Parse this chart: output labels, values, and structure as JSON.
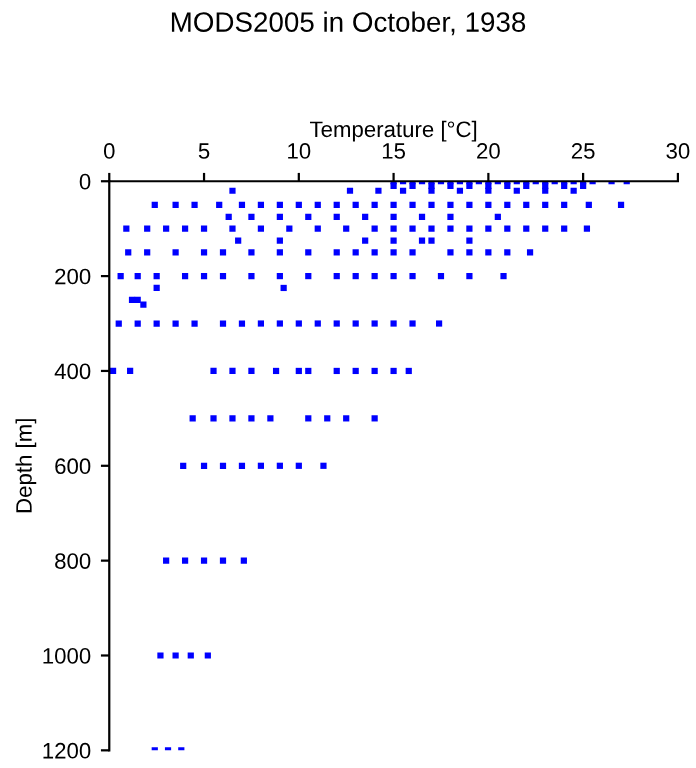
{
  "chart_data": {
    "type": "scatter",
    "title": "MODS2005 in October, 1938",
    "xlabel": "Temperature [°C]",
    "ylabel": "Depth [m]",
    "xlim": [
      0,
      30
    ],
    "xticks": [
      0,
      5,
      10,
      15,
      20,
      25,
      30
    ],
    "ylim": [
      1200,
      0
    ],
    "yticks": [
      0,
      200,
      400,
      600,
      800,
      1000,
      1200
    ],
    "grid": false,
    "marker": "square",
    "series": [
      {
        "color": "#0000ff",
        "x": [
          15,
          15.5,
          16,
          16.5,
          17,
          17.5,
          18,
          18.5,
          19,
          19.5,
          20,
          20.5,
          21,
          21.5,
          22,
          22.5,
          23,
          23.5,
          24,
          24.5,
          25,
          25.5,
          26.5,
          27.3,
          15,
          16,
          17,
          18,
          19,
          20,
          21,
          22,
          23,
          24,
          25,
          6.5,
          12.7,
          14.2,
          15.5,
          17,
          18.5,
          20,
          21.5,
          23,
          24.5,
          2.4,
          3.5,
          4.5,
          5.8,
          7,
          8,
          9,
          10,
          11,
          12,
          13,
          14,
          15,
          16,
          17,
          18,
          19,
          20,
          21,
          22,
          23,
          24,
          25.3,
          27,
          6.3,
          7.5,
          9,
          10.5,
          12,
          13.5,
          15,
          16.5,
          18,
          20.5,
          0.9,
          2,
          3,
          4,
          5,
          6.5,
          8,
          9.5,
          11,
          12.5,
          14,
          15,
          16,
          17,
          18,
          19,
          20,
          21,
          22,
          23,
          24,
          25.2,
          6.8,
          9,
          13.5,
          15,
          16.5,
          17,
          19,
          1,
          2,
          3.5,
          5,
          6,
          7.5,
          9,
          10.5,
          12,
          13,
          14,
          15,
          16,
          18,
          19,
          20,
          21,
          22.2,
          0.6,
          1.5,
          2.5,
          4,
          5,
          6,
          7.5,
          9,
          10.5,
          12,
          13,
          14,
          15,
          16,
          17.5,
          19,
          20.8,
          2.5,
          9.2,
          1.2,
          1.5,
          1.8,
          0.5,
          1.5,
          2.5,
          3.5,
          4.5,
          6,
          7,
          8,
          9,
          10,
          11,
          12,
          13,
          14,
          15,
          16,
          17.4,
          0.2,
          1.1,
          5.5,
          6.5,
          7.5,
          8.8,
          10,
          10.5,
          12,
          13,
          14,
          15,
          15.8,
          4.4,
          5.5,
          6.5,
          7.5,
          8.5,
          10.5,
          11.5,
          12.5,
          14,
          3.9,
          5,
          6,
          7,
          8,
          9,
          10,
          11.3,
          3,
          4,
          5,
          6,
          7.1,
          2.7,
          3.5,
          4.3,
          5.2,
          2.4,
          3.1,
          3.8
        ],
        "values": [
          0,
          0,
          0,
          0,
          0,
          0,
          0,
          0,
          0,
          0,
          0,
          0,
          0,
          0,
          0,
          0,
          0,
          0,
          0,
          0,
          0,
          0,
          0,
          0,
          10,
          10,
          10,
          10,
          10,
          10,
          10,
          10,
          10,
          10,
          10,
          20,
          20,
          20,
          20,
          20,
          20,
          20,
          20,
          20,
          20,
          50,
          50,
          50,
          50,
          50,
          50,
          50,
          50,
          50,
          50,
          50,
          50,
          50,
          50,
          50,
          50,
          50,
          50,
          50,
          50,
          50,
          50,
          50,
          50,
          75,
          75,
          75,
          75,
          75,
          75,
          75,
          75,
          75,
          75,
          100,
          100,
          100,
          100,
          100,
          100,
          100,
          100,
          100,
          100,
          100,
          100,
          100,
          100,
          100,
          100,
          100,
          100,
          100,
          100,
          100,
          100,
          125,
          125,
          125,
          125,
          125,
          125,
          125,
          150,
          150,
          150,
          150,
          150,
          150,
          150,
          150,
          150,
          150,
          150,
          150,
          150,
          150,
          150,
          150,
          150,
          150,
          200,
          200,
          200,
          200,
          200,
          200,
          200,
          200,
          200,
          200,
          200,
          200,
          200,
          200,
          200,
          200,
          200,
          225,
          225,
          250,
          250,
          260,
          300,
          300,
          300,
          300,
          300,
          300,
          300,
          300,
          300,
          300,
          300,
          300,
          300,
          300,
          300,
          300,
          300,
          400,
          400,
          400,
          400,
          400,
          400,
          400,
          400,
          400,
          400,
          400,
          400,
          400,
          500,
          500,
          500,
          500,
          500,
          500,
          500,
          500,
          500,
          600,
          600,
          600,
          600,
          600,
          600,
          600,
          600,
          800,
          800,
          800,
          800,
          800,
          1000,
          1000,
          1000,
          1000,
          1200,
          1200,
          1200
        ]
      }
    ]
  }
}
